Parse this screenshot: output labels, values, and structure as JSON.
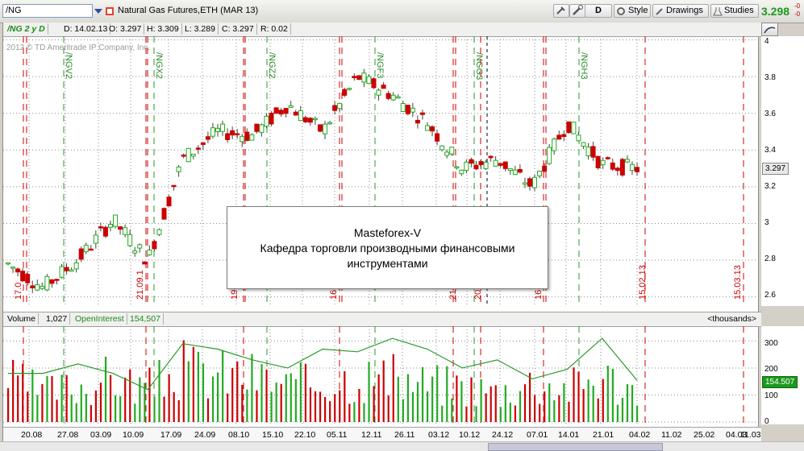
{
  "toolbar": {
    "symbol": "/NG",
    "description": "Natural Gas Futures,ETH (MAR 13)",
    "period_button": "D",
    "style_label": "Style",
    "drawings_label": "Drawings",
    "studies_label": "Studies",
    "last_price": "3.298",
    "delta_1": "-0",
    "delta_2": "-0"
  },
  "info": {
    "symbol_period": "/NG 2 y D",
    "date": "D: 14.02.13",
    "open": "O: 3.297",
    "high": "H: 3.309",
    "low": "L: 3.289",
    "close": "C: 3.297",
    "range": "R: 0.02"
  },
  "watermark": "2012 © TD Ameritrade IP Company, Inc.",
  "overlay": {
    "line1": "Masteforex-V",
    "line2": "Кафедра торговли производными финансовыми",
    "line3": "инструментами"
  },
  "price_axis": {
    "ticks": [
      "4",
      "3.8",
      "3.6",
      "3.4",
      "3.2",
      "3",
      "2.8",
      "2.6"
    ],
    "current": "3.297"
  },
  "volume_bar": {
    "volume_label": "Volume",
    "volume_value": "1,027",
    "oi_label": "OpenInterest",
    "oi_value": "154,507",
    "units": "<thousands>"
  },
  "volume_axis": {
    "ticks": [
      "300",
      "200",
      "100",
      "0"
    ],
    "current": "154.507"
  },
  "x_axis": [
    "20.08",
    "27.08",
    "03.09",
    "10.09",
    "17.09",
    "24.09",
    "08.10",
    "15.10",
    "22.10",
    "05.11",
    "12.11",
    "26.11",
    "03.12",
    "10.12",
    "24.12",
    "07.01",
    "14.01",
    "21.01",
    "04.02",
    "11.02",
    "25.02",
    "04.03",
    "11.03"
  ],
  "contract_labels": [
    "/NGV2",
    "/NGX2",
    "/NGZ2",
    "/NGF3",
    "/NGG3",
    "/NGH3"
  ],
  "expiry_labels": [
    "17.0",
    "21.09.1",
    "19",
    "16",
    "21",
    "20",
    "16",
    "15.02.13",
    "15.03.13"
  ],
  "colors": {
    "up": "#22aa22",
    "down": "#cc0000",
    "oi_line": "#2a9a2a",
    "price_green": "#1c9a1c"
  },
  "chart_data": [
    {
      "type": "candlestick",
      "ylim": [
        2.55,
        4.02
      ],
      "x": [
        "20.08",
        "27.08",
        "03.09",
        "10.09",
        "17.09",
        "24.09",
        "08.10",
        "15.10",
        "22.10",
        "05.11",
        "12.11",
        "26.11",
        "03.12",
        "10.12",
        "24.12",
        "07.01",
        "14.01",
        "21.01",
        "04.02"
      ],
      "close": [
        2.78,
        2.65,
        2.8,
        3.02,
        2.8,
        3.35,
        3.5,
        3.48,
        3.65,
        3.5,
        3.8,
        3.7,
        3.55,
        3.3,
        3.35,
        3.2,
        3.55,
        3.32,
        3.3
      ],
      "last": 3.297
    },
    {
      "type": "bar",
      "ylim": [
        0,
        340
      ],
      "series": [
        {
          "name": "Volume",
          "values": [
            210,
            150,
            180,
            220,
            170,
            260,
            240,
            230,
            180,
            200,
            230,
            210,
            190,
            180,
            150,
            200,
            170,
            230,
            150
          ]
        },
        {
          "name": "OpenInterest",
          "values": [
            180,
            180,
            215,
            180,
            120,
            290,
            270,
            230,
            200,
            270,
            260,
            310,
            270,
            200,
            230,
            160,
            195,
            310,
            154.507
          ]
        }
      ]
    }
  ]
}
